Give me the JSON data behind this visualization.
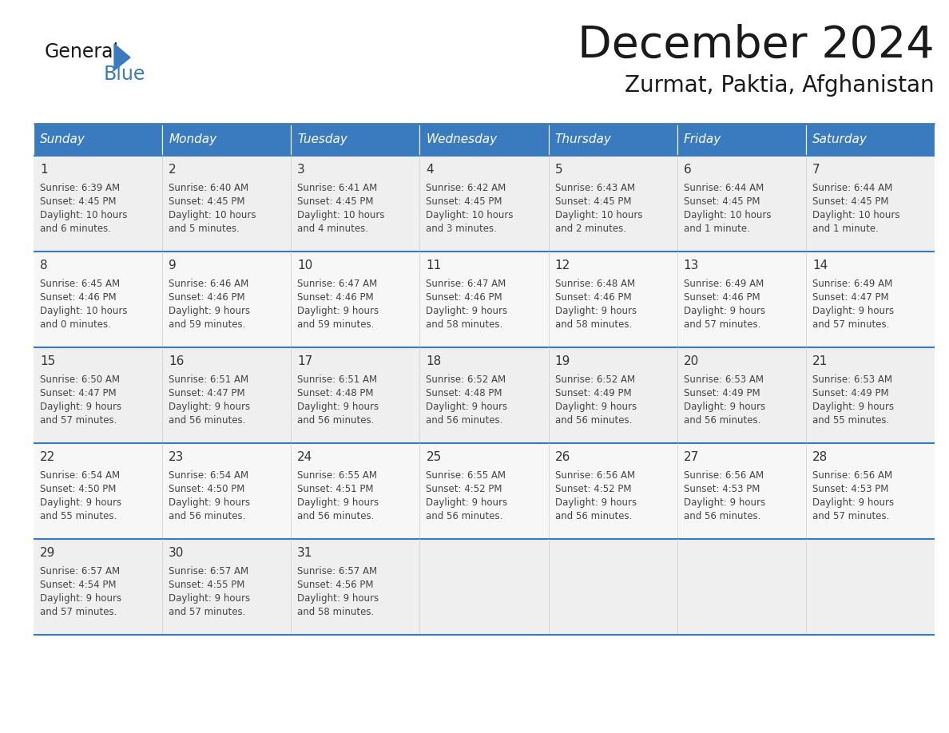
{
  "title": "December 2024",
  "subtitle": "Zurmat, Paktia, Afghanistan",
  "header_color": "#3a7bbf",
  "header_text_color": "#ffffff",
  "cell_bg_even": "#efefef",
  "cell_bg_odd": "#f7f7f7",
  "day_headers": [
    "Sunday",
    "Monday",
    "Tuesday",
    "Wednesday",
    "Thursday",
    "Friday",
    "Saturday"
  ],
  "weeks": [
    [
      {
        "day": 1,
        "sunrise": "6:39 AM",
        "sunset": "4:45 PM",
        "daylight": "10 hours and 6 minutes."
      },
      {
        "day": 2,
        "sunrise": "6:40 AM",
        "sunset": "4:45 PM",
        "daylight": "10 hours and 5 minutes."
      },
      {
        "day": 3,
        "sunrise": "6:41 AM",
        "sunset": "4:45 PM",
        "daylight": "10 hours and 4 minutes."
      },
      {
        "day": 4,
        "sunrise": "6:42 AM",
        "sunset": "4:45 PM",
        "daylight": "10 hours and 3 minutes."
      },
      {
        "day": 5,
        "sunrise": "6:43 AM",
        "sunset": "4:45 PM",
        "daylight": "10 hours and 2 minutes."
      },
      {
        "day": 6,
        "sunrise": "6:44 AM",
        "sunset": "4:45 PM",
        "daylight": "10 hours and 1 minute."
      },
      {
        "day": 7,
        "sunrise": "6:44 AM",
        "sunset": "4:45 PM",
        "daylight": "10 hours and 1 minute."
      }
    ],
    [
      {
        "day": 8,
        "sunrise": "6:45 AM",
        "sunset": "4:46 PM",
        "daylight": "10 hours and 0 minutes."
      },
      {
        "day": 9,
        "sunrise": "6:46 AM",
        "sunset": "4:46 PM",
        "daylight": "9 hours and 59 minutes."
      },
      {
        "day": 10,
        "sunrise": "6:47 AM",
        "sunset": "4:46 PM",
        "daylight": "9 hours and 59 minutes."
      },
      {
        "day": 11,
        "sunrise": "6:47 AM",
        "sunset": "4:46 PM",
        "daylight": "9 hours and 58 minutes."
      },
      {
        "day": 12,
        "sunrise": "6:48 AM",
        "sunset": "4:46 PM",
        "daylight": "9 hours and 58 minutes."
      },
      {
        "day": 13,
        "sunrise": "6:49 AM",
        "sunset": "4:46 PM",
        "daylight": "9 hours and 57 minutes."
      },
      {
        "day": 14,
        "sunrise": "6:49 AM",
        "sunset": "4:47 PM",
        "daylight": "9 hours and 57 minutes."
      }
    ],
    [
      {
        "day": 15,
        "sunrise": "6:50 AM",
        "sunset": "4:47 PM",
        "daylight": "9 hours and 57 minutes."
      },
      {
        "day": 16,
        "sunrise": "6:51 AM",
        "sunset": "4:47 PM",
        "daylight": "9 hours and 56 minutes."
      },
      {
        "day": 17,
        "sunrise": "6:51 AM",
        "sunset": "4:48 PM",
        "daylight": "9 hours and 56 minutes."
      },
      {
        "day": 18,
        "sunrise": "6:52 AM",
        "sunset": "4:48 PM",
        "daylight": "9 hours and 56 minutes."
      },
      {
        "day": 19,
        "sunrise": "6:52 AM",
        "sunset": "4:49 PM",
        "daylight": "9 hours and 56 minutes."
      },
      {
        "day": 20,
        "sunrise": "6:53 AM",
        "sunset": "4:49 PM",
        "daylight": "9 hours and 56 minutes."
      },
      {
        "day": 21,
        "sunrise": "6:53 AM",
        "sunset": "4:49 PM",
        "daylight": "9 hours and 55 minutes."
      }
    ],
    [
      {
        "day": 22,
        "sunrise": "6:54 AM",
        "sunset": "4:50 PM",
        "daylight": "9 hours and 55 minutes."
      },
      {
        "day": 23,
        "sunrise": "6:54 AM",
        "sunset": "4:50 PM",
        "daylight": "9 hours and 56 minutes."
      },
      {
        "day": 24,
        "sunrise": "6:55 AM",
        "sunset": "4:51 PM",
        "daylight": "9 hours and 56 minutes."
      },
      {
        "day": 25,
        "sunrise": "6:55 AM",
        "sunset": "4:52 PM",
        "daylight": "9 hours and 56 minutes."
      },
      {
        "day": 26,
        "sunrise": "6:56 AM",
        "sunset": "4:52 PM",
        "daylight": "9 hours and 56 minutes."
      },
      {
        "day": 27,
        "sunrise": "6:56 AM",
        "sunset": "4:53 PM",
        "daylight": "9 hours and 56 minutes."
      },
      {
        "day": 28,
        "sunrise": "6:56 AM",
        "sunset": "4:53 PM",
        "daylight": "9 hours and 57 minutes."
      }
    ],
    [
      {
        "day": 29,
        "sunrise": "6:57 AM",
        "sunset": "4:54 PM",
        "daylight": "9 hours and 57 minutes."
      },
      {
        "day": 30,
        "sunrise": "6:57 AM",
        "sunset": "4:55 PM",
        "daylight": "9 hours and 57 minutes."
      },
      {
        "day": 31,
        "sunrise": "6:57 AM",
        "sunset": "4:56 PM",
        "daylight": "9 hours and 58 minutes."
      },
      null,
      null,
      null,
      null
    ]
  ],
  "logo_black_color": "#1a1a1a",
  "logo_blue_color": "#3a7bbf",
  "line_color": "#3a7bbf",
  "title_fontsize": 40,
  "subtitle_fontsize": 20,
  "day_header_fontsize": 11,
  "day_num_fontsize": 11,
  "cell_text_fontsize": 8.5
}
